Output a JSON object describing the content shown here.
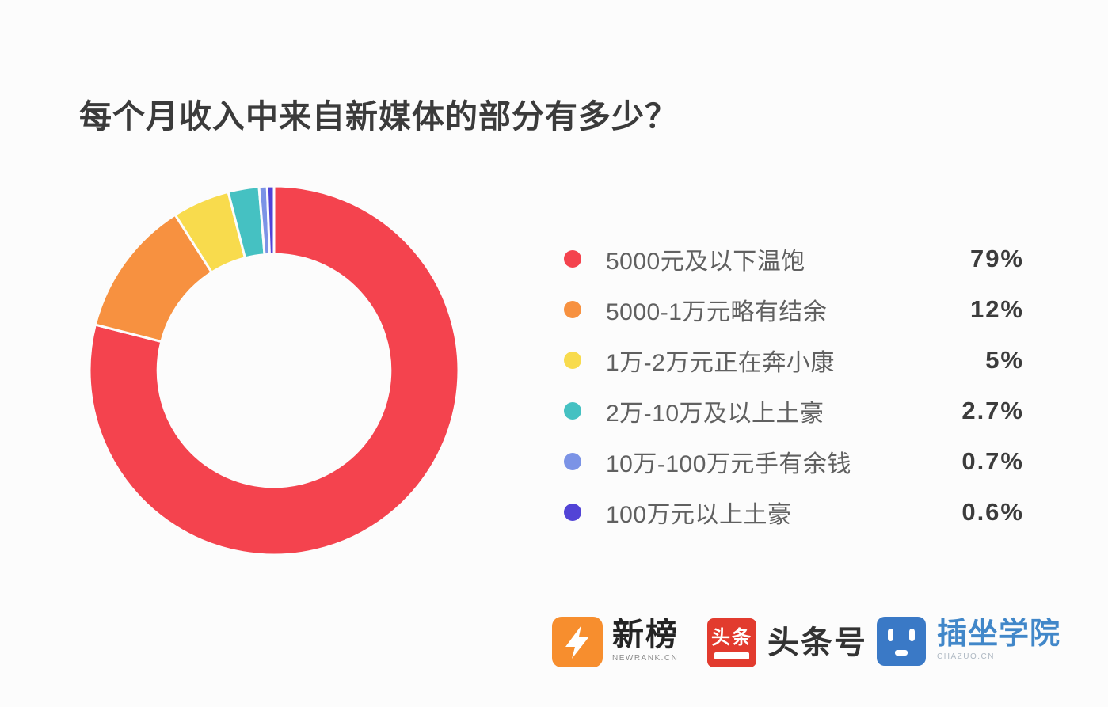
{
  "page": {
    "background": "#FCFCFC"
  },
  "title": {
    "text": "每个月收入中来自新媒体的部分有多少？"
  },
  "chart_data": {
    "type": "pie",
    "subtype": "donut",
    "title": "每个月收入中来自新媒体的部分有多少？",
    "start_angle_deg_from_top": 0,
    "clockwise": true,
    "inner_radius_ratio": 0.63,
    "legend_position": "right",
    "slices": [
      {
        "label": "5000元及以下温饱",
        "value": 79,
        "percent_label": "79%",
        "color": "#F4434E"
      },
      {
        "label": "5000-1万元略有结余",
        "value": 12,
        "percent_label": "12%",
        "color": "#F79140"
      },
      {
        "label": "1万-2万元正在奔小康",
        "value": 5,
        "percent_label": "5%",
        "color": "#F8DB4D"
      },
      {
        "label": "2万-10万及以上土豪",
        "value": 2.7,
        "percent_label": "2.7%",
        "color": "#45C1C2"
      },
      {
        "label": "10万-100万元手有余钱",
        "value": 0.7,
        "percent_label": "0.7%",
        "color": "#7B93E6"
      },
      {
        "label": "100万元以上土豪",
        "value": 0.6,
        "percent_label": "0.6%",
        "color": "#5244D6"
      }
    ],
    "slice_border_color": "#FCFCFC",
    "slice_border_width": 3
  },
  "footer": {
    "brands": [
      {
        "name": "newrank",
        "icon": "newrank-lightning-n-icon",
        "icon_bg": "#F78E2E",
        "text": "新榜",
        "subtext": "NEWRANK.CN"
      },
      {
        "name": "toutiao",
        "icon": "toutiao-red-square-icon",
        "icon_bg": "#E23B2E",
        "icon_chars": "头条",
        "text": "头条号"
      },
      {
        "name": "chazuo",
        "icon": "chazuo-robot-face-icon",
        "icon_bg": "#3A79C6",
        "text": "插坐学院",
        "text_color": "#4187C9",
        "subtext": "CHAZUO.CN"
      }
    ]
  }
}
